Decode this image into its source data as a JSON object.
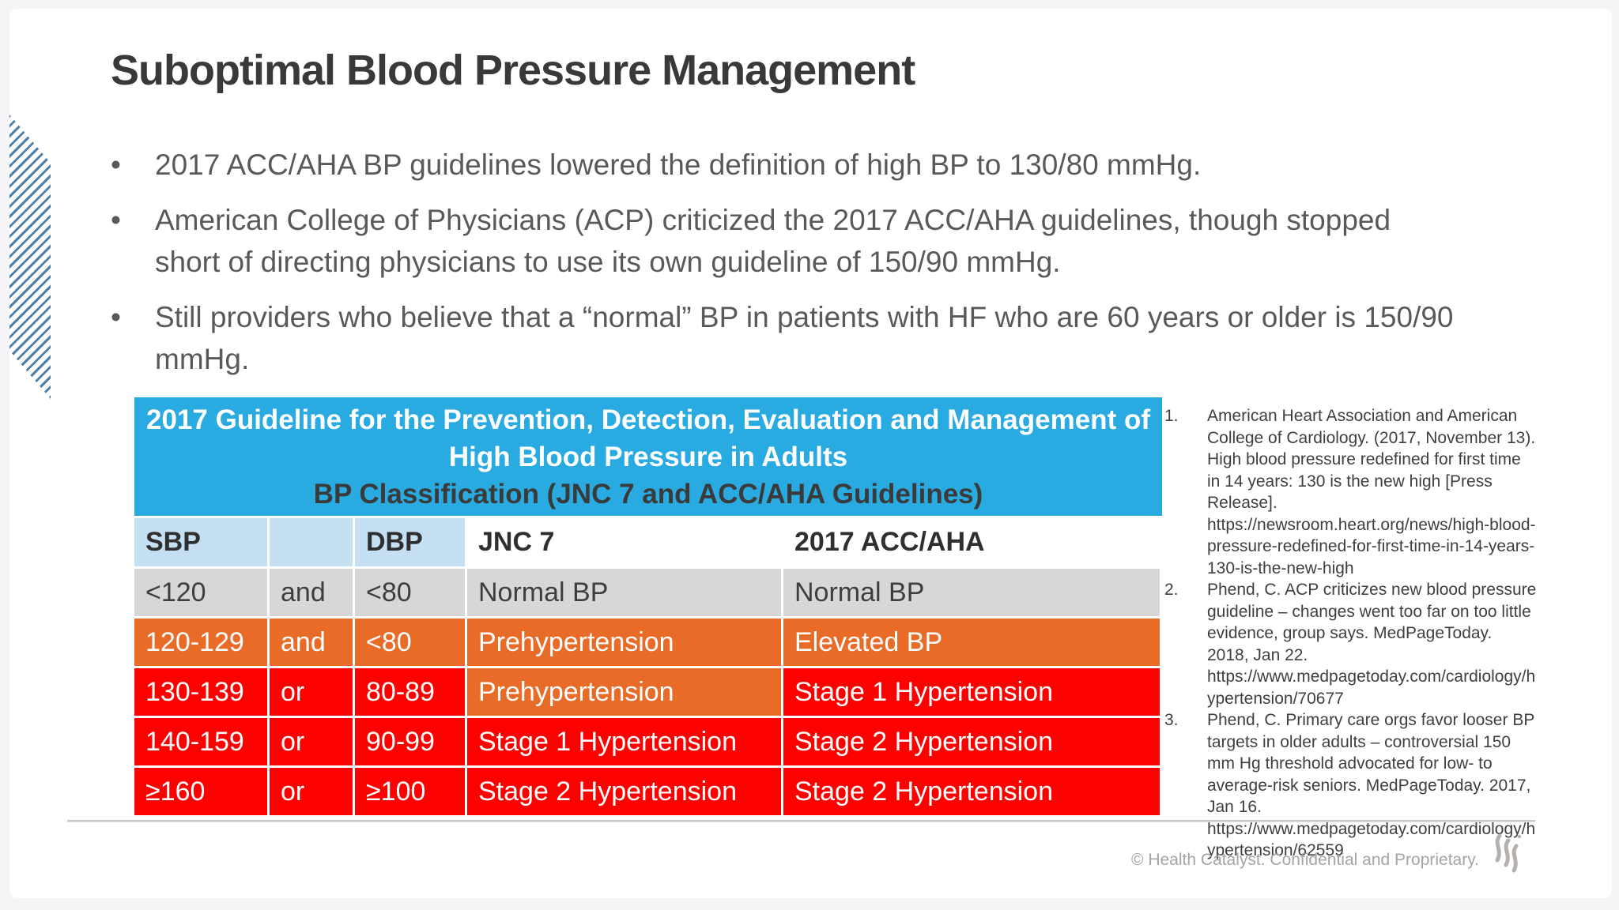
{
  "slide": {
    "title": "Suboptimal Blood Pressure Management",
    "bullet_char": "•",
    "bullets": [
      "2017 ACC/AHA BP guidelines lowered the definition of high BP to 130/80 mmHg.",
      "American College of Physicians (ACP) criticized the 2017 ACC/AHA guidelines, though stopped short of directing physicians to use its own guideline of 150/90 mmHg.",
      "Still providers who believe that a “normal” BP in patients with HF who are 60 years or older is 150/90 mmHg."
    ],
    "table": {
      "title_lines": [
        "2017 Guideline for the Prevention, Detection, Evaluation and Management of",
        "High Blood Pressure in Adults",
        "BP Classification (JNC 7 and ACC/AHA Guidelines)"
      ],
      "header": {
        "cells": [
          "SBP",
          "",
          "DBP",
          "JNC 7",
          "2017 ACC/AHA"
        ],
        "colors": [
          "lightblue",
          "lightblue",
          "lightblue",
          "white",
          "white"
        ]
      },
      "rows": [
        {
          "cells": [
            "<120",
            "and",
            "<80",
            "Normal BP",
            "Normal BP"
          ],
          "colors": [
            "gray",
            "gray",
            "gray",
            "gray",
            "gray"
          ]
        },
        {
          "cells": [
            "120-129",
            "and",
            "<80",
            "Prehypertension",
            "Elevated BP"
          ],
          "colors": [
            "orange",
            "orange",
            "orange",
            "orange",
            "orange"
          ]
        },
        {
          "cells": [
            "130-139",
            "or",
            "80-89",
            "Prehypertension",
            "Stage 1 Hypertension"
          ],
          "colors": [
            "red",
            "red",
            "red",
            "orange",
            "red"
          ]
        },
        {
          "cells": [
            "140-159",
            "or",
            "90-99",
            "Stage 1 Hypertension",
            "Stage 2 Hypertension"
          ],
          "colors": [
            "red",
            "red",
            "red",
            "red",
            "red"
          ]
        },
        {
          "cells": [
            "≥160",
            "or",
            "≥100",
            "Stage 2 Hypertension",
            "Stage 2 Hypertension"
          ],
          "colors": [
            "red",
            "red",
            "red",
            "red",
            "red"
          ]
        }
      ]
    },
    "references": [
      {
        "num": "1.",
        "text": "American Heart Association and American College of Cardiology. (2017, November 13). High blood pressure redefined for first time in 14 years: 130 is the new high [Press Release]. https://newsroom.heart.org/news/high-blood-pressure-redefined-for-first-time-in-14-years-130-is-the-new-high"
      },
      {
        "num": "2.",
        "text": "Phend, C. ACP criticizes new blood pressure guideline – changes went too far on too little evidence, group says. MedPageToday. 2018, Jan 22. https://www.medpagetoday.com/cardiology/hypertension/70677"
      },
      {
        "num": "3.",
        "text": "Phend, C. Primary care orgs favor looser BP targets in older adults – controversial 150  mm Hg threshold advocated for low- to average-risk seniors. MedPageToday. 2017, Jan 16. https://www.medpagetoday.com/cardiology/hypertension/62559"
      }
    ],
    "footer": {
      "copyright": "© Health Catalyst. Confidential and Proprietary.",
      "logo_icon": "health-catalyst-flame-logo"
    },
    "colors": {
      "table_header_blue": "#29abe2",
      "header_cell_light_blue": "#c5dff3",
      "row_gray": "#d7d7d7",
      "row_orange": "#e86c27",
      "row_red": "#fb0100",
      "stripe_blue": "#4d7fa8",
      "title_text": "#393939",
      "body_text": "#595959",
      "footer_text": "#a7a4a1"
    }
  }
}
